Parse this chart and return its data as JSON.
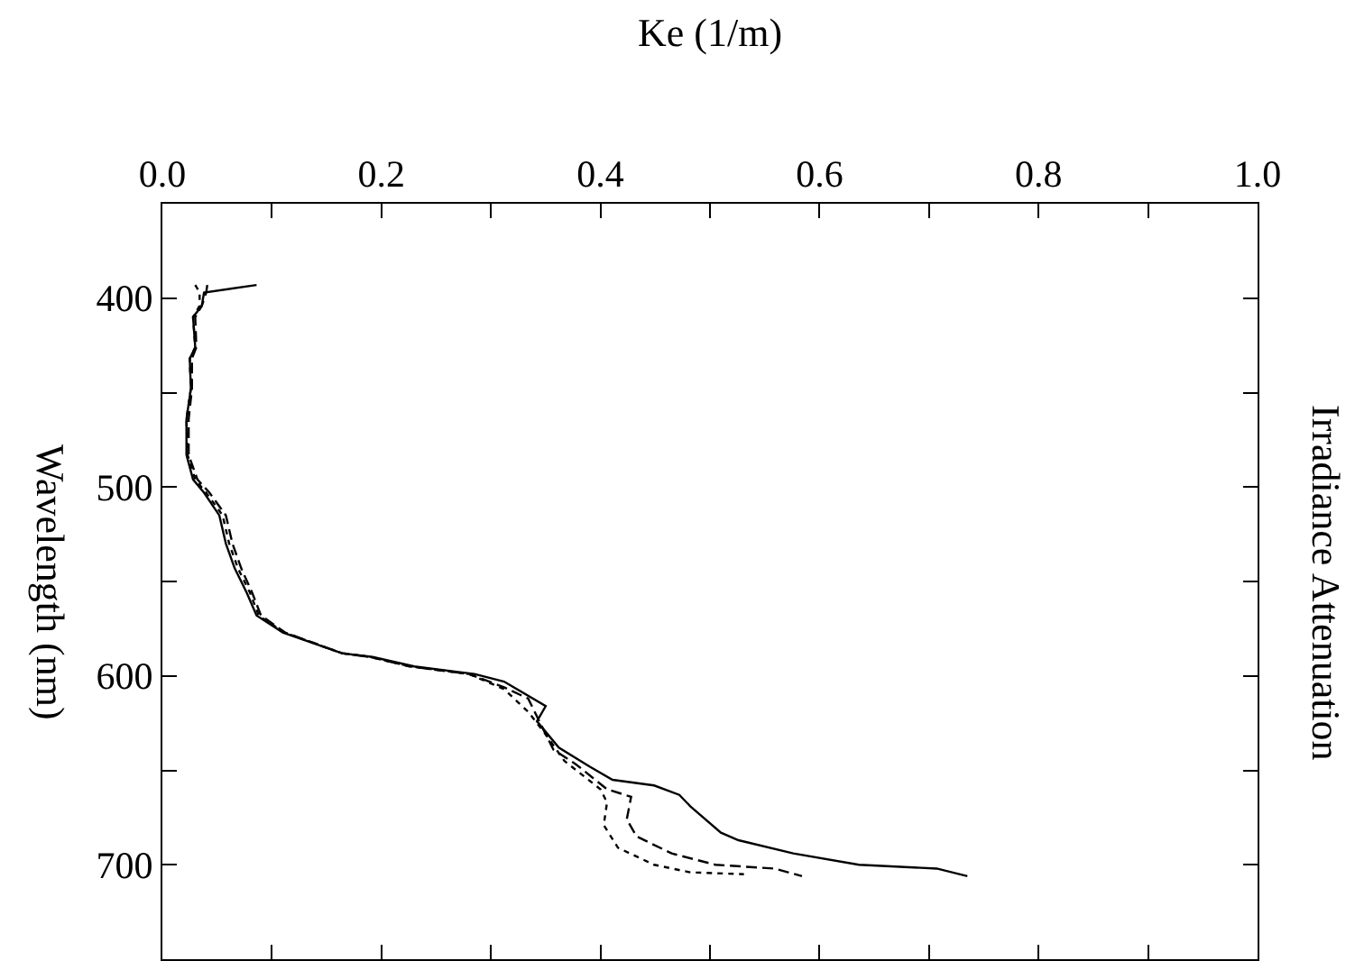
{
  "chart_data": {
    "type": "line",
    "title": "Irradiance Attenuation",
    "xlabel": "Ke (1/m)",
    "ylabel": "Wavelength (nm)",
    "xlim": [
      0,
      1
    ],
    "xticks": [
      {
        "value": 0,
        "label": "0.0"
      },
      {
        "value": 0.1,
        "label": null
      },
      0.2,
      {
        "value": 0.3,
        "label": null
      },
      0.4,
      {
        "value": 0.5,
        "label": null
      },
      0.6,
      {
        "value": 0.7,
        "label": null
      },
      0.8,
      {
        "value": 0.9,
        "label": null
      },
      {
        "value": 1,
        "label": "1.0"
      }
    ],
    "ylim": [
      750,
      350
    ],
    "yticks": [
      400,
      {
        "value": 450,
        "label": null
      },
      500,
      {
        "value": 550,
        "label": null
      },
      600,
      {
        "value": 650,
        "label": null
      },
      700
    ],
    "grid": false,
    "marker": "none",
    "series": [
      {
        "color": "#000000",
        "line_style": "solid",
        "values": [
          393,
          397,
          404,
          410,
          426,
          432,
          448,
          464,
          483,
          496,
          503,
          515,
          530,
          543,
          556,
          568,
          577,
          588,
          590,
          595,
          599,
          603,
          616,
          624,
          638,
          648,
          655,
          658,
          663,
          669,
          683,
          687,
          694,
          700,
          702,
          706
        ],
        "x": [
          0.086,
          0.038,
          0.036,
          0.028,
          0.03,
          0.025,
          0.026,
          0.022,
          0.022,
          0.028,
          0.038,
          0.052,
          0.058,
          0.066,
          0.077,
          0.086,
          0.11,
          0.164,
          0.192,
          0.23,
          0.285,
          0.312,
          0.35,
          0.342,
          0.362,
          0.39,
          0.411,
          0.449,
          0.472,
          0.482,
          0.51,
          0.526,
          0.576,
          0.636,
          0.707,
          0.735
        ]
      },
      {
        "color": "#000000",
        "line_style": "dashed",
        "values": [
          393,
          397,
          404,
          410,
          426,
          432,
          448,
          464,
          483,
          496,
          503,
          515,
          530,
          543,
          556,
          568,
          577,
          588,
          590,
          595,
          599,
          606,
          612,
          625,
          639,
          647,
          660,
          664,
          676,
          685,
          694,
          700,
          702,
          706
        ],
        "x": [
          0.041,
          0.04,
          0.036,
          0.03,
          0.031,
          0.027,
          0.027,
          0.024,
          0.024,
          0.032,
          0.043,
          0.058,
          0.064,
          0.072,
          0.082,
          0.09,
          0.112,
          0.164,
          0.19,
          0.226,
          0.28,
          0.312,
          0.334,
          0.345,
          0.357,
          0.378,
          0.406,
          0.428,
          0.424,
          0.433,
          0.465,
          0.505,
          0.559,
          0.584
        ]
      },
      {
        "color": "#000000",
        "line_style": "dotted",
        "values": [
          393,
          397,
          404,
          410,
          426,
          432,
          448,
          464,
          483,
          496,
          503,
          515,
          530,
          543,
          556,
          568,
          577,
          588,
          590,
          595,
          599,
          607,
          619,
          631,
          645,
          660,
          667,
          679,
          691,
          700,
          704,
          705
        ],
        "x": [
          0.03,
          0.034,
          0.034,
          0.028,
          0.03,
          0.025,
          0.026,
          0.022,
          0.023,
          0.03,
          0.04,
          0.055,
          0.061,
          0.069,
          0.08,
          0.088,
          0.111,
          0.164,
          0.19,
          0.226,
          0.28,
          0.312,
          0.334,
          0.35,
          0.367,
          0.4,
          0.406,
          0.403,
          0.416,
          0.449,
          0.482,
          0.531
        ]
      }
    ]
  }
}
